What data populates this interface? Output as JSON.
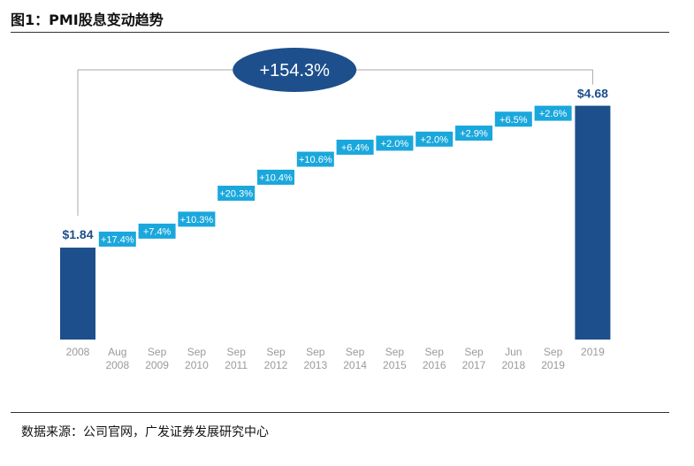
{
  "figure": {
    "title": "图1：PMI股息变动趋势",
    "source": "数据来源：公司官网，广发证券发展研究中心"
  },
  "chart_data": {
    "type": "bar",
    "subtype": "waterfall",
    "currency_symbol": "$",
    "categories": [
      [
        "2008"
      ],
      [
        "Aug",
        "2008"
      ],
      [
        "Sep",
        "2009"
      ],
      [
        "Sep",
        "2010"
      ],
      [
        "Sep",
        "2011"
      ],
      [
        "Sep",
        "2012"
      ],
      [
        "Sep",
        "2013"
      ],
      [
        "Sep",
        "2014"
      ],
      [
        "Sep",
        "2015"
      ],
      [
        "Sep",
        "2016"
      ],
      [
        "Sep",
        "2017"
      ],
      [
        "Jun",
        "2018"
      ],
      [
        "Sep",
        "2019"
      ],
      [
        "2019"
      ]
    ],
    "start": {
      "value": 1.84,
      "label": "$1.84"
    },
    "end": {
      "value": 4.68,
      "label": "$4.68"
    },
    "increments": [
      {
        "label": "+17.4%",
        "pct": 17.4
      },
      {
        "label": "+7.4%",
        "pct": 7.4
      },
      {
        "label": "+10.3%",
        "pct": 10.3
      },
      {
        "label": "+20.3%",
        "pct": 20.3
      },
      {
        "label": "+10.4%",
        "pct": 10.4
      },
      {
        "label": "+10.6%",
        "pct": 10.6
      },
      {
        "label": "+6.4%",
        "pct": 6.4
      },
      {
        "label": "+2.0%",
        "pct": 2.0
      },
      {
        "label": "+2.0%",
        "pct": 2.0
      },
      {
        "label": "+2.9%",
        "pct": 2.9
      },
      {
        "label": "+6.5%",
        "pct": 6.5
      },
      {
        "label": "+2.6%",
        "pct": 2.6
      }
    ],
    "total_change": "+154.3%",
    "grid": false,
    "colors": {
      "total_bar": "#1d4f8c",
      "step_bar": "#1aa7dc",
      "callout": "#1d4f8c",
      "axis_label": "#9a9a9a",
      "bracket": "#aaaaaa"
    }
  }
}
